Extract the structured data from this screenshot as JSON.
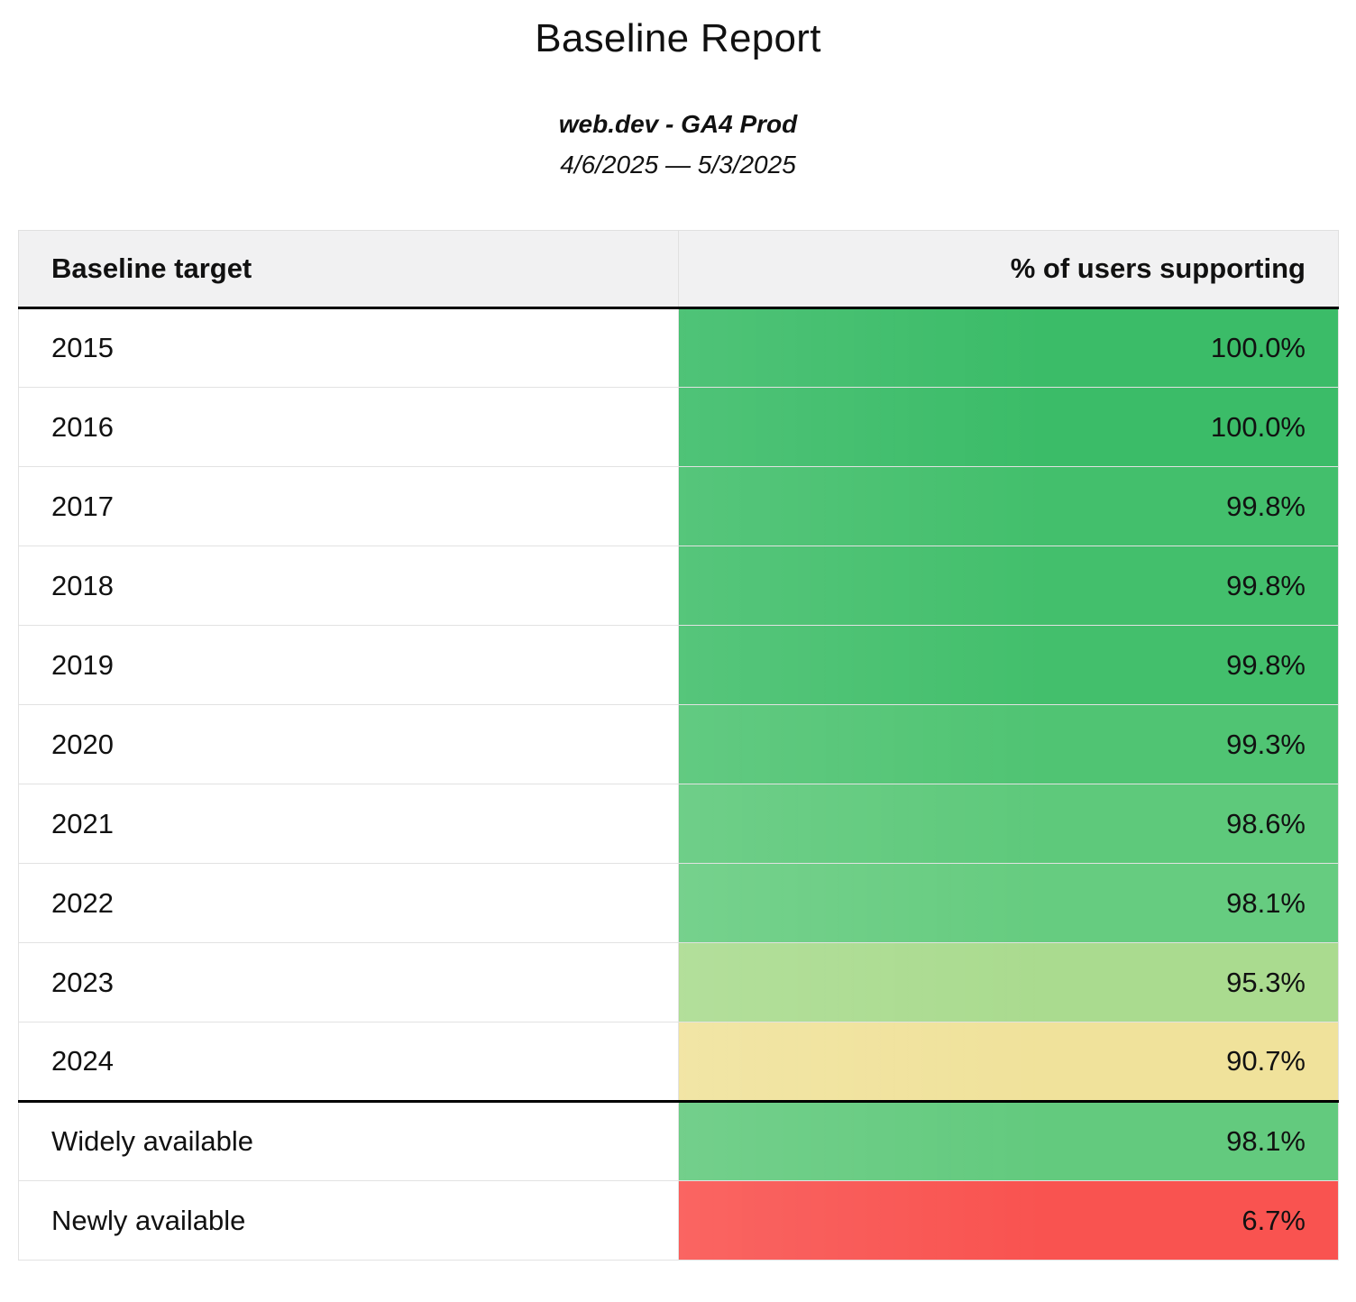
{
  "report": {
    "title": "Baseline Report",
    "subtitle": "web.dev - GA4 Prod",
    "date_range": "4/6/2025 — 5/3/2025"
  },
  "table": {
    "columns": [
      "Baseline target",
      "% of users supporting"
    ],
    "rows": [
      {
        "label": "2015",
        "value": "100.0%",
        "bg": "#3bbc68"
      },
      {
        "label": "2016",
        "value": "100.0%",
        "bg": "#3bbc68"
      },
      {
        "label": "2017",
        "value": "99.8%",
        "bg": "#43bf6c"
      },
      {
        "label": "2018",
        "value": "99.8%",
        "bg": "#43bf6c"
      },
      {
        "label": "2019",
        "value": "99.8%",
        "bg": "#43bf6c"
      },
      {
        "label": "2020",
        "value": "99.3%",
        "bg": "#50c473"
      },
      {
        "label": "2021",
        "value": "98.6%",
        "bg": "#5ec97b"
      },
      {
        "label": "2022",
        "value": "98.1%",
        "bg": "#66cc80"
      },
      {
        "label": "2023",
        "value": "95.3%",
        "bg": "#aadb8f"
      },
      {
        "label": "2024",
        "value": "90.7%",
        "bg": "#f0e29b"
      },
      {
        "label": "Widely available",
        "value": "98.1%",
        "bg": "#63ca7e"
      },
      {
        "label": "Newly available",
        "value": "6.7%",
        "bg": "#f95350"
      }
    ]
  },
  "colors": {
    "divider_strong": "#000000",
    "divider_light": "#e2e2e2",
    "header_background": "#f1f1f2",
    "status_green_strong": "#3bbc68",
    "status_green_light": "#aadb8f",
    "status_yellow": "#f0e29b",
    "status_red": "#f95350"
  },
  "chart_data": {
    "type": "table",
    "title": "Baseline Report",
    "subtitle": "web.dev - GA4 Prod",
    "date_range": "4/6/2025 — 5/3/2025",
    "columns": [
      "Baseline target",
      "% of users supporting"
    ],
    "rows": [
      [
        "2015",
        100.0
      ],
      [
        "2016",
        100.0
      ],
      [
        "2017",
        99.8
      ],
      [
        "2018",
        99.8
      ],
      [
        "2019",
        99.8
      ],
      [
        "2020",
        99.3
      ],
      [
        "2021",
        98.6
      ],
      [
        "2022",
        98.1
      ],
      [
        "2023",
        95.3
      ],
      [
        "2024",
        90.7
      ],
      [
        "Widely available",
        98.1
      ],
      [
        "Newly available",
        6.7
      ]
    ],
    "value_unit": "percent",
    "value_range": [
      0,
      100
    ],
    "color_scale": "red-yellow-green conditional formatting on % of users supporting",
    "notes": "Thick black rule separates header and separates yearly targets (2015–2024) from availability groups (Widely available, Newly available)."
  }
}
